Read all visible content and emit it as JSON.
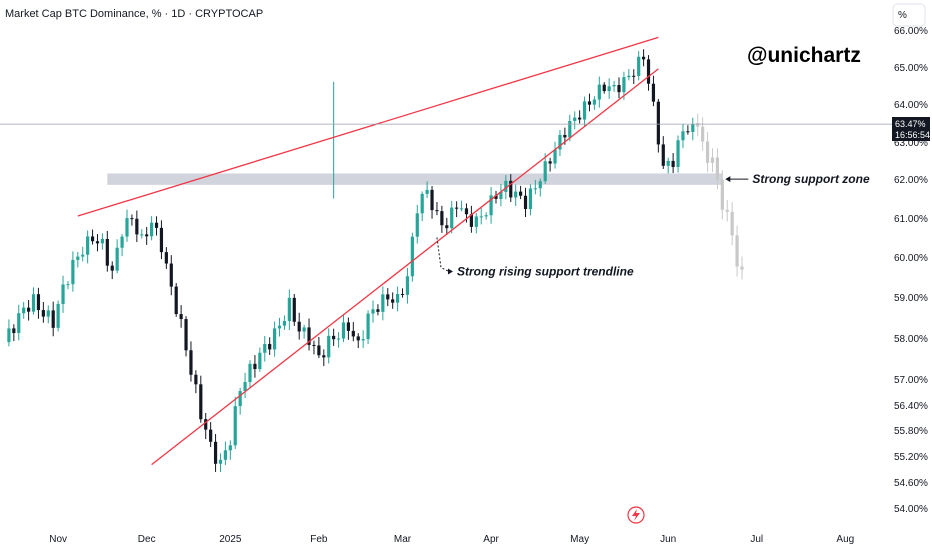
{
  "header": {
    "title": "Market Cap BTC Dominance, % · 1D · CRYPTOCAP"
  },
  "watermark": "@unichartz",
  "scale_button": "%",
  "current_price": {
    "value": "63.47%",
    "countdown": "16:56:54"
  },
  "colors": {
    "up": "#26a69a",
    "down": "#131722",
    "trendline": "#f23645",
    "support_zone": "#d1d4dc",
    "projection": "#c8c8c8"
  },
  "icons": {
    "lightning": "lightning-icon"
  },
  "chart_data": {
    "type": "candlestick",
    "title": "Market Cap BTC Dominance, % · 1D · CRYPTOCAP",
    "y_ticks": [
      "66.00%",
      "65.00%",
      "64.00%",
      "63.00%",
      "62.00%",
      "61.00%",
      "60.00%",
      "59.00%",
      "58.00%",
      "57.00%",
      "56.40%",
      "55.80%",
      "55.20%",
      "54.60%",
      "54.00%"
    ],
    "x_ticks": [
      "Nov",
      "Dec",
      "2025",
      "Feb",
      "Mar",
      "Apr",
      "May",
      "Jun",
      "Jul",
      "Aug"
    ],
    "series_close": [
      [
        0,
        57.9
      ],
      [
        2,
        58.3
      ],
      [
        4,
        58.7
      ],
      [
        6,
        58.9
      ],
      [
        8,
        58.6
      ],
      [
        10,
        58.4
      ],
      [
        12,
        59.2
      ],
      [
        14,
        59.8
      ],
      [
        16,
        60.2
      ],
      [
        18,
        60.5
      ],
      [
        20,
        60.3
      ],
      [
        22,
        59.6
      ],
      [
        24,
        60.7
      ],
      [
        26,
        61.0
      ],
      [
        28,
        60.4
      ],
      [
        30,
        60.9
      ],
      [
        32,
        60.3
      ],
      [
        34,
        59.2
      ],
      [
        36,
        58.3
      ],
      [
        38,
        57.2
      ],
      [
        40,
        56.2
      ],
      [
        42,
        55.4
      ],
      [
        44,
        55.0
      ],
      [
        46,
        55.6
      ],
      [
        48,
        56.8
      ],
      [
        50,
        57.2
      ],
      [
        52,
        57.6
      ],
      [
        54,
        57.9
      ],
      [
        56,
        58.3
      ],
      [
        58,
        58.8
      ],
      [
        60,
        58.2
      ],
      [
        62,
        58.0
      ],
      [
        64,
        57.5
      ],
      [
        66,
        57.9
      ],
      [
        68,
        58.1
      ],
      [
        70,
        58.3
      ],
      [
        72,
        57.8
      ],
      [
        74,
        58.5
      ],
      [
        76,
        58.8
      ],
      [
        78,
        59.0
      ],
      [
        80,
        58.9
      ],
      [
        82,
        59.5
      ],
      [
        84,
        61.3
      ],
      [
        86,
        61.7
      ],
      [
        88,
        61.0
      ],
      [
        90,
        60.8
      ],
      [
        92,
        61.4
      ],
      [
        94,
        61.0
      ],
      [
        96,
        60.9
      ],
      [
        98,
        61.2
      ],
      [
        100,
        61.6
      ],
      [
        102,
        61.8
      ],
      [
        104,
        61.6
      ],
      [
        106,
        61.4
      ],
      [
        108,
        61.8
      ],
      [
        110,
        62.3
      ],
      [
        112,
        62.8
      ],
      [
        114,
        63.3
      ],
      [
        116,
        63.6
      ],
      [
        118,
        63.9
      ],
      [
        120,
        64.2
      ],
      [
        122,
        64.5
      ],
      [
        124,
        64.4
      ],
      [
        126,
        64.6
      ],
      [
        128,
        64.9
      ],
      [
        130,
        65.3
      ],
      [
        132,
        63.9
      ],
      [
        134,
        62.3
      ],
      [
        136,
        62.5
      ],
      [
        138,
        63.3
      ],
      [
        140,
        63.47
      ]
    ],
    "projection": [
      [
        140,
        63.5
      ],
      [
        144,
        62.4
      ],
      [
        148,
        60.5
      ],
      [
        150,
        59.5
      ]
    ],
    "x_tick_index": {
      "Nov": 11,
      "Dec": 29,
      "2025": 46,
      "Feb": 64,
      "Mar": 81,
      "Apr": 99,
      "May": 117,
      "Jun": 135,
      "Jul": 153,
      "Aug": 171
    },
    "support_zone": {
      "low": 61.85,
      "high": 62.15,
      "label": "Strong support zone"
    },
    "trendlines": [
      {
        "name": "upper",
        "from": [
          15,
          61.05
        ],
        "to": [
          133,
          65.8
        ]
      },
      {
        "name": "lower",
        "from": [
          30,
          55.0
        ],
        "to": [
          133,
          64.95
        ],
        "label": "Strong rising support trendline"
      }
    ],
    "grid": false,
    "legend": "none"
  }
}
